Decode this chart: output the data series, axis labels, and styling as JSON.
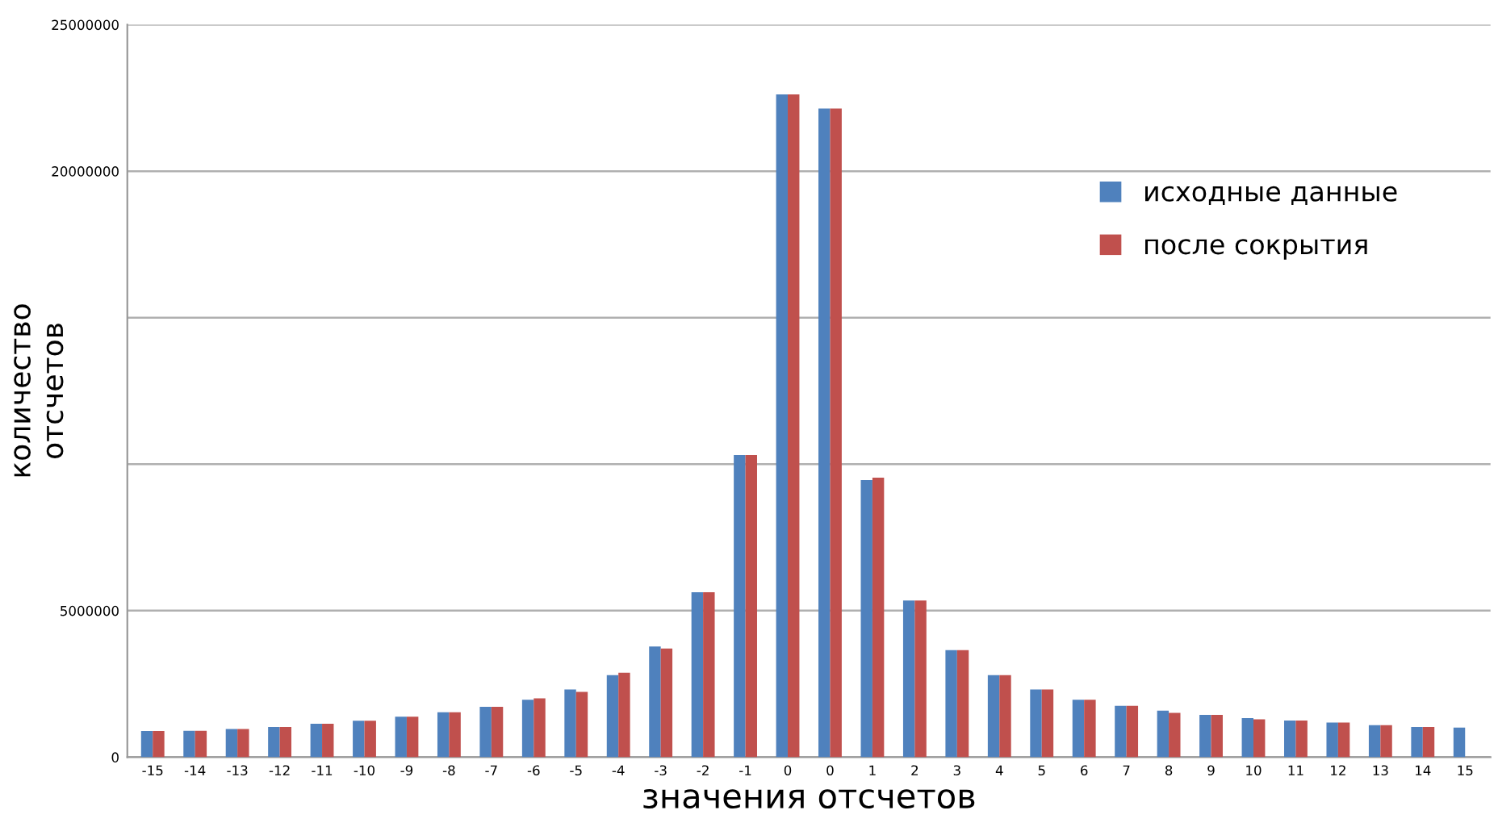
{
  "chart_data": {
    "type": "bar",
    "xlabel": "значения отсчетов",
    "ylabel": "количество\nотсчетов",
    "categories": [
      "-15",
      "-14",
      "-13",
      "-12",
      "-11",
      "-10",
      "-9",
      "-8",
      "-7",
      "-6",
      "-5",
      "-4",
      "-3",
      "-2",
      "-1",
      "0",
      "0",
      "1",
      "2",
      "3",
      "4",
      "5",
      "6",
      "7",
      "8",
      "9",
      "10",
      "11",
      "12",
      "13",
      "14",
      "15"
    ],
    "series": [
      {
        "name": "исходные данные",
        "color": "#4f81bd",
        "values": [
          890000,
          900000,
          960000,
          1030000,
          1140000,
          1240000,
          1380000,
          1530000,
          1720000,
          1960000,
          2310000,
          2800000,
          3780000,
          5630000,
          10310000,
          22620000,
          22140000,
          9460000,
          5350000,
          3650000,
          2800000,
          2310000,
          1960000,
          1750000,
          1590000,
          1440000,
          1330000,
          1250000,
          1180000,
          1090000,
          1030000,
          1010000
        ]
      },
      {
        "name": "после сокрытия",
        "color": "#c0504d",
        "values": [
          890000,
          900000,
          960000,
          1030000,
          1140000,
          1240000,
          1380000,
          1530000,
          1720000,
          2010000,
          2230000,
          2880000,
          3710000,
          5630000,
          10310000,
          22620000,
          22140000,
          9540000,
          5350000,
          3650000,
          2800000,
          2310000,
          1960000,
          1750000,
          1510000,
          1440000,
          1290000,
          1250000,
          1180000,
          1090000,
          1030000,
          null
        ]
      }
    ],
    "ylim": [
      0,
      25000000
    ],
    "yticks": [
      0,
      5000000,
      {
        "value": 10000000,
        "label": null
      },
      {
        "value": 15000000,
        "label": null
      },
      20000000,
      25000000
    ],
    "grid": "y",
    "legend": "top right"
  }
}
